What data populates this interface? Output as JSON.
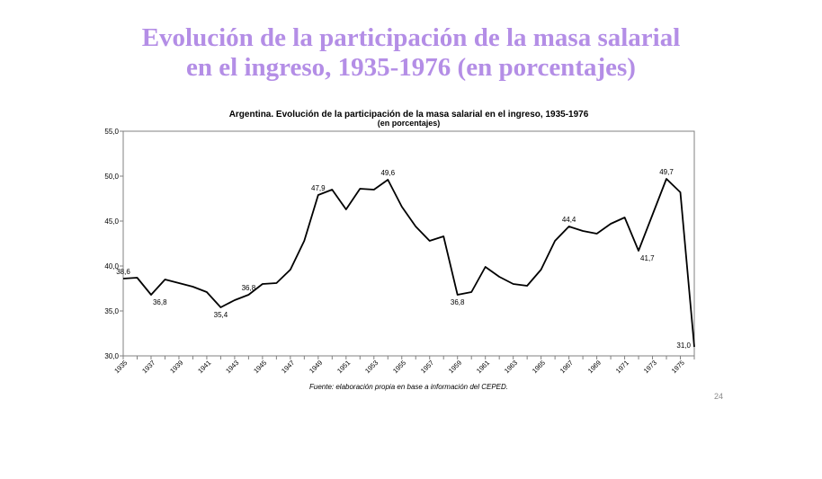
{
  "slide": {
    "title_line1": "Evolución de la participación de la masa salarial",
    "title_line2": "en el ingreso, 1935-1976 (en porcentajes)",
    "title_color": "#b48ee6",
    "page_number": "24"
  },
  "chart_data": {
    "type": "line",
    "title": "Argentina. Evolución de la participación de la masa salarial en el ingreso, 1935-1976",
    "subtitle": "(en porcentajes)",
    "source": "Fuente: elaboración propia en base a información del CEPED.",
    "xlabel": "",
    "ylabel": "",
    "ylim": [
      30,
      55
    ],
    "y_ticks": [
      "30,0",
      "35,0",
      "40,0",
      "45,0",
      "50,0",
      "55,0"
    ],
    "x_tick_labels": [
      "1935",
      "1937",
      "1939",
      "1941",
      "1943",
      "1945",
      "1947",
      "1949",
      "1951",
      "1953",
      "1955",
      "1957",
      "1959",
      "1961",
      "1963",
      "1965",
      "1967",
      "1969",
      "1971",
      "1973",
      "1975"
    ],
    "grid": false,
    "line_color": "#000000",
    "x": [
      1935,
      1936,
      1937,
      1938,
      1939,
      1940,
      1941,
      1942,
      1943,
      1944,
      1945,
      1946,
      1947,
      1948,
      1949,
      1950,
      1951,
      1952,
      1953,
      1954,
      1955,
      1956,
      1957,
      1958,
      1959,
      1960,
      1961,
      1962,
      1963,
      1964,
      1965,
      1966,
      1967,
      1968,
      1969,
      1970,
      1971,
      1972,
      1973,
      1974,
      1975,
      1976
    ],
    "series": [
      {
        "values": [
          38.6,
          38.7,
          36.8,
          38.5,
          38.1,
          37.7,
          37.1,
          35.4,
          36.2,
          36.8,
          38.0,
          38.1,
          39.6,
          42.8,
          47.9,
          48.5,
          46.3,
          48.6,
          48.5,
          49.6,
          46.6,
          44.4,
          42.8,
          43.3,
          36.8,
          37.1,
          39.9,
          38.8,
          38.0,
          37.8,
          39.6,
          42.8,
          44.4,
          43.9,
          43.6,
          44.7,
          45.4,
          41.7,
          45.7,
          49.7,
          48.2,
          31.0
        ]
      }
    ],
    "data_labels": [
      {
        "x": 1935,
        "text": "38,6",
        "pos": "above"
      },
      {
        "x": 1937,
        "text": "36,8",
        "pos": "below-right"
      },
      {
        "x": 1942,
        "text": "35,4",
        "pos": "below"
      },
      {
        "x": 1944,
        "text": "36,8",
        "pos": "above"
      },
      {
        "x": 1949,
        "text": "47,9",
        "pos": "above"
      },
      {
        "x": 1954,
        "text": "49,6",
        "pos": "above"
      },
      {
        "x": 1959,
        "text": "36,8",
        "pos": "below"
      },
      {
        "x": 1967,
        "text": "44,4",
        "pos": "above"
      },
      {
        "x": 1972,
        "text": "41,7",
        "pos": "below-right"
      },
      {
        "x": 1974,
        "text": "49,7",
        "pos": "above"
      },
      {
        "x": 1976,
        "text": "31,0",
        "pos": "left"
      }
    ]
  }
}
